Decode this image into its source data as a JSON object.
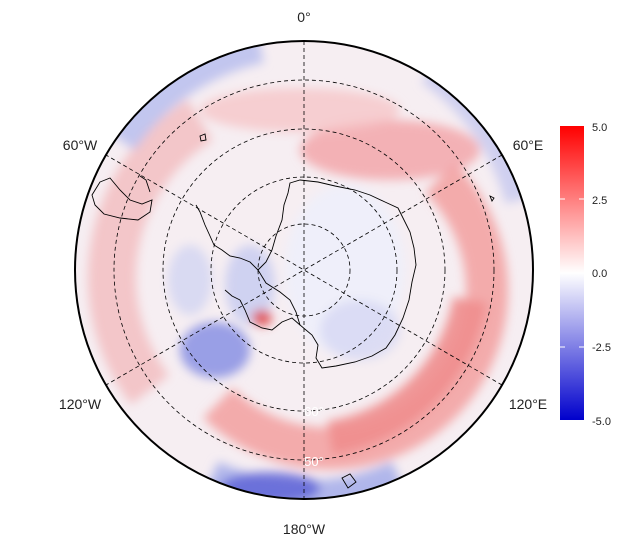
{
  "map": {
    "projection": "south-polar stereographic",
    "longitude_labels": [
      "0°",
      "60°E",
      "120°E",
      "180°W",
      "120°W",
      "60°W"
    ],
    "latitude_labels": [
      "60°",
      "50°"
    ],
    "colors": {
      "high": "#ff0000",
      "mid": "#ffffff",
      "low": "#0000cc",
      "coastline": "#000000",
      "graticule": "#000000"
    }
  },
  "colorbar": {
    "min": -5.0,
    "max": 5.0,
    "ticks": [
      "5.0",
      "2.5",
      "0.0",
      "-2.5",
      "-5.0"
    ]
  }
}
